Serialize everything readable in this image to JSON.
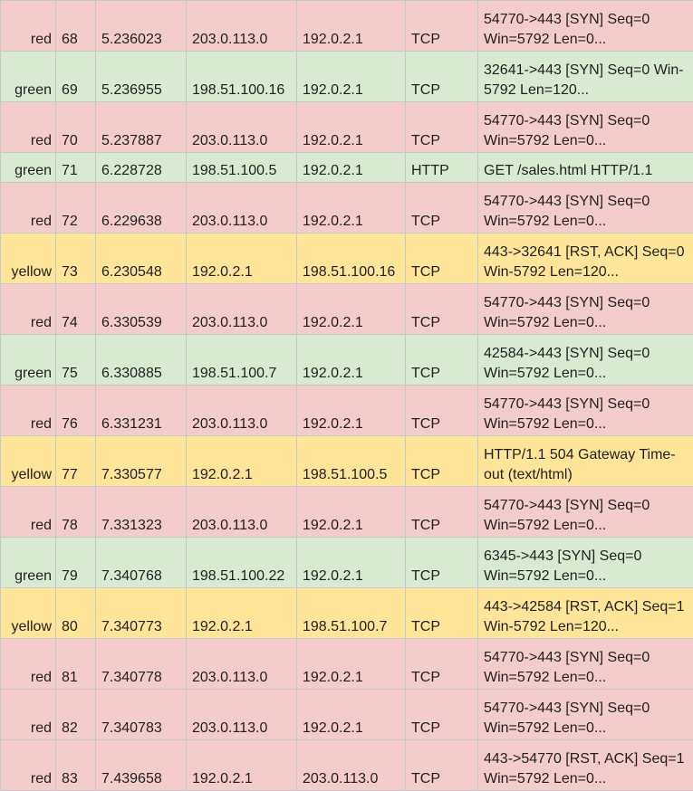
{
  "colors": {
    "red": "#f4cccc",
    "green": "#d9ead3",
    "yellow": "#ffe599",
    "grid": "#c7c7c7"
  },
  "rows": [
    {
      "color": "red",
      "no": "68",
      "time": "5.236023",
      "source": "203.0.113.0",
      "destination": "192.0.2.1",
      "protocol": "TCP",
      "info": "54770->443 [SYN] Seq=0 Win=5792 Len=0..."
    },
    {
      "color": "green",
      "no": "69",
      "time": "5.236955",
      "source": "198.51.100.16",
      "destination": "192.0.2.1",
      "protocol": "TCP",
      "info": "32641->443 [SYN] Seq=0 Win-5792 Len=120..."
    },
    {
      "color": "red",
      "no": "70",
      "time": "5.237887",
      "source": "203.0.113.0",
      "destination": "192.0.2.1",
      "protocol": "TCP",
      "info": "54770->443 [SYN] Seq=0 Win=5792 Len=0..."
    },
    {
      "color": "green",
      "no": "71",
      "time": "6.228728",
      "source": "198.51.100.5",
      "destination": "192.0.2.1",
      "protocol": "HTTP",
      "info": "GET /sales.html HTTP/1.1"
    },
    {
      "color": "red",
      "no": "72",
      "time": "6.229638",
      "source": "203.0.113.0",
      "destination": "192.0.2.1",
      "protocol": "TCP",
      "info": "54770->443 [SYN] Seq=0 Win=5792 Len=0..."
    },
    {
      "color": "yellow",
      "no": "73",
      "time": "6.230548",
      "source": "192.0.2.1",
      "destination": "198.51.100.16",
      "protocol": "TCP",
      "info": "443->32641 [RST, ACK] Seq=0 Win-5792 Len=120..."
    },
    {
      "color": "red",
      "no": "74",
      "time": "6.330539",
      "source": "203.0.113.0",
      "destination": "192.0.2.1",
      "protocol": "TCP",
      "info": "54770->443 [SYN] Seq=0 Win=5792 Len=0..."
    },
    {
      "color": "green",
      "no": "75",
      "time": "6.330885",
      "source": "198.51.100.7",
      "destination": "192.0.2.1",
      "protocol": "TCP",
      "info": "42584->443 [SYN] Seq=0 Win=5792 Len=0..."
    },
    {
      "color": "red",
      "no": "76",
      "time": "6.331231",
      "source": "203.0.113.0",
      "destination": "192.0.2.1",
      "protocol": "TCP",
      "info": "54770->443 [SYN] Seq=0 Win=5792 Len=0..."
    },
    {
      "color": "yellow",
      "no": "77",
      "time": "7.330577",
      "source": "192.0.2.1",
      "destination": "198.51.100.5",
      "protocol": "TCP",
      "info": "HTTP/1.1 504 Gateway Time-out (text/html)"
    },
    {
      "color": "red",
      "no": "78",
      "time": "7.331323",
      "source": "203.0.113.0",
      "destination": "192.0.2.1",
      "protocol": "TCP",
      "info": "54770->443 [SYN] Seq=0 Win=5792 Len=0..."
    },
    {
      "color": "green",
      "no": "79",
      "time": "7.340768",
      "source": "198.51.100.22",
      "destination": "192.0.2.1",
      "protocol": "TCP",
      "info": "6345->443 [SYN] Seq=0 Win=5792 Len=0..."
    },
    {
      "color": "yellow",
      "no": "80",
      "time": "7.340773",
      "source": "192.0.2.1",
      "destination": "198.51.100.7",
      "protocol": "TCP",
      "info": "443->42584 [RST, ACK] Seq=1 Win-5792 Len=120..."
    },
    {
      "color": "red",
      "no": "81",
      "time": "7.340778",
      "source": "203.0.113.0",
      "destination": "192.0.2.1",
      "protocol": "TCP",
      "info": "54770->443 [SYN] Seq=0 Win=5792 Len=0..."
    },
    {
      "color": "red",
      "no": "82",
      "time": "7.340783",
      "source": "203.0.113.0",
      "destination": "192.0.2.1",
      "protocol": "TCP",
      "info": "54770->443 [SYN] Seq=0 Win=5792 Len=0..."
    },
    {
      "color": "red",
      "no": "83",
      "time": "7.439658",
      "source": "192.0.2.1",
      "destination": "203.0.113.0",
      "protocol": "TCP",
      "info": "443->54770 [RST, ACK] Seq=1 Win=5792 Len=0..."
    }
  ]
}
